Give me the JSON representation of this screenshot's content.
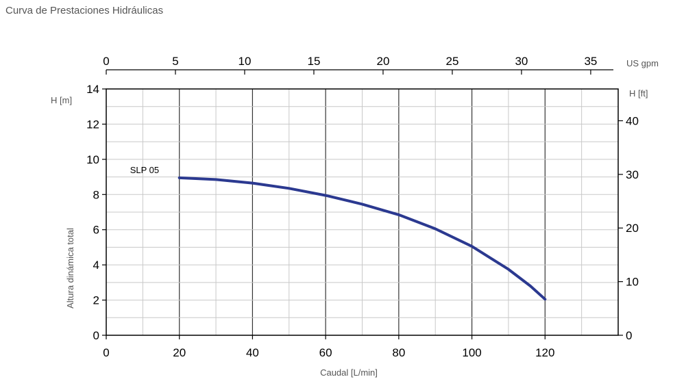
{
  "page": {
    "title": "Curva de Prestaciones Hidráulicas"
  },
  "chart_data": {
    "type": "line",
    "xlabel": "Caudal [L/min]",
    "ylabel": "Altura dinámica total",
    "left_axis_unit": "H [m]",
    "right_axis_unit": "H [ft]",
    "top_axis_unit": "US gpm",
    "xlim": [
      0,
      140
    ],
    "ylim": [
      0,
      14
    ],
    "x_ticks": [
      0,
      20,
      40,
      60,
      80,
      100,
      120
    ],
    "y_ticks": [
      0,
      2,
      4,
      6,
      8,
      10,
      12,
      14
    ],
    "top_ticks_gpm": [
      0,
      5,
      10,
      15,
      20,
      25,
      30,
      35
    ],
    "right_ticks_ft": [
      0,
      10,
      20,
      30,
      40
    ],
    "grid": true,
    "series": [
      {
        "name": "SLP 05",
        "color": "#2b3990",
        "x": [
          20,
          30,
          40,
          50,
          60,
          70,
          80,
          90,
          100,
          110,
          116,
          120
        ],
        "y": [
          8.95,
          8.85,
          8.65,
          8.35,
          7.95,
          7.45,
          6.85,
          6.05,
          5.05,
          3.75,
          2.8,
          2.05
        ]
      }
    ]
  }
}
